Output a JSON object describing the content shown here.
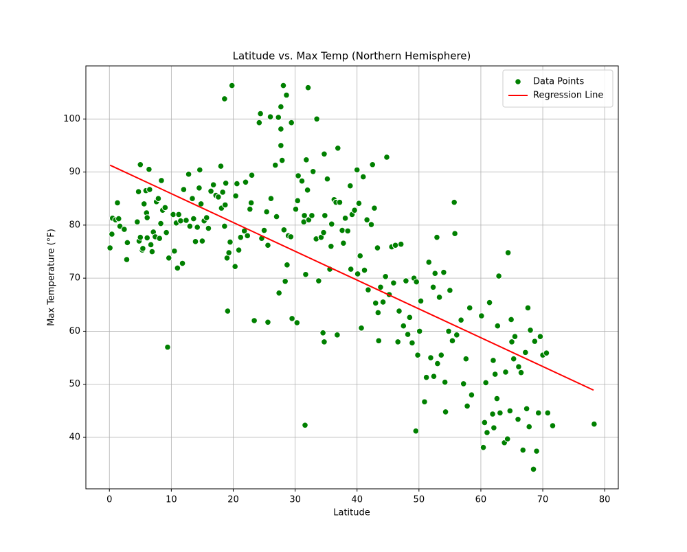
{
  "chart_data": {
    "type": "scatter",
    "title": "Latitude vs. Max Temp (Northern Hemisphere)",
    "xlabel": "Latitude",
    "ylabel": "Max Temperature (°F)",
    "xlim": [
      -3.8,
      82.2
    ],
    "ylim": [
      30.3,
      110
    ],
    "xticks": [
      0,
      10,
      20,
      30,
      40,
      50,
      60,
      70,
      80
    ],
    "yticks": [
      40,
      50,
      60,
      70,
      80,
      90,
      100
    ],
    "grid": true,
    "legend": "upper right",
    "series": [
      {
        "name": "Data Points",
        "kind": "scatter",
        "color": "green",
        "x": [
          0.1,
          0.4,
          0.5,
          1.0,
          1.3,
          1.5,
          1.7,
          2.4,
          2.8,
          2.9,
          4.5,
          4.7,
          4.8,
          5.0,
          5.0,
          5.3,
          5.4,
          5.6,
          5.9,
          6.0,
          6.1,
          6.1,
          6.4,
          6.5,
          6.7,
          6.9,
          7.1,
          7.4,
          7.6,
          7.9,
          8.1,
          8.3,
          8.4,
          8.6,
          9.0,
          9.2,
          9.4,
          9.6,
          10.3,
          10.5,
          10.8,
          11.0,
          11.2,
          11.5,
          11.8,
          12.0,
          12.4,
          12.8,
          13.0,
          13.4,
          13.6,
          13.9,
          14.2,
          14.5,
          14.6,
          14.8,
          15.0,
          15.3,
          15.7,
          16.0,
          16.4,
          16.8,
          17.2,
          17.6,
          18.0,
          18.1,
          18.3,
          18.6,
          18.7,
          18.8,
          18.6,
          19.0,
          19.3,
          19.1,
          19.5,
          19.8,
          20.3,
          20.4,
          20.6,
          20.9,
          21.2,
          21.8,
          22.0,
          22.3,
          22.7,
          23.0,
          22.9,
          23.4,
          24.2,
          24.4,
          24.6,
          25.0,
          25.4,
          25.6,
          25.6,
          26.0,
          26.1,
          26.8,
          27.0,
          27.3,
          27.4,
          27.7,
          27.7,
          27.7,
          27.9,
          28.1,
          28.2,
          28.4,
          28.6,
          28.7,
          28.9,
          29.3,
          29.4,
          29.5,
          30.1,
          30.3,
          30.4,
          30.5,
          31.1,
          31.4,
          31.5,
          31.6,
          31.7,
          31.8,
          32.0,
          32.1,
          32.2,
          32.7,
          32.9,
          33.4,
          33.5,
          33.8,
          34.2,
          34.5,
          34.6,
          34.7,
          34.7,
          34.8,
          35.2,
          35.6,
          35.8,
          35.9,
          36.3,
          36.6,
          36.8,
          36.9,
          37.2,
          37.6,
          37.8,
          38.1,
          38.5,
          38.9,
          39.0,
          39.2,
          39.6,
          40.0,
          40.1,
          40.3,
          40.5,
          40.7,
          41.0,
          41.2,
          41.6,
          41.8,
          42.3,
          42.5,
          42.8,
          43.0,
          43.3,
          43.4,
          43.5,
          43.8,
          44.2,
          44.6,
          44.8,
          45.2,
          45.6,
          45.9,
          46.2,
          46.6,
          46.8,
          47.1,
          47.5,
          47.9,
          48.2,
          48.5,
          48.9,
          49.2,
          49.5,
          49.6,
          49.8,
          50.1,
          50.3,
          50.9,
          51.2,
          51.6,
          51.9,
          52.3,
          52.4,
          52.6,
          52.9,
          53.0,
          53.3,
          53.6,
          54.0,
          54.2,
          54.3,
          54.8,
          55.0,
          55.4,
          55.7,
          55.8,
          56.1,
          56.8,
          57.2,
          57.6,
          57.8,
          58.2,
          58.5,
          60.1,
          60.4,
          60.6,
          60.8,
          61.0,
          61.4,
          61.9,
          62.0,
          62.1,
          62.3,
          62.6,
          62.7,
          62.9,
          63.1,
          63.8,
          64.0,
          64.3,
          64.4,
          64.7,
          64.9,
          65.0,
          65.3,
          65.5,
          66.0,
          66.1,
          66.5,
          66.8,
          67.2,
          67.4,
          67.6,
          67.8,
          68.0,
          68.5,
          68.7,
          69.0,
          69.3,
          69.6,
          70.0,
          70.6,
          70.8,
          71.6,
          78.3
        ],
        "values": [
          75.7,
          78.3,
          81.3,
          81,
          84.2,
          81.2,
          79.8,
          79.2,
          73.5,
          76.7,
          80.6,
          86.3,
          77,
          91.4,
          77.7,
          75.3,
          75.6,
          84,
          86.5,
          82.3,
          81.4,
          77.6,
          90.5,
          86.7,
          76.3,
          75,
          78.7,
          77.8,
          84.4,
          85,
          77.5,
          80.3,
          88.4,
          82.8,
          83.3,
          78.6,
          57,
          73.8,
          82,
          75.1,
          80.4,
          71.9,
          82,
          80.8,
          72.8,
          86.7,
          80.9,
          89.6,
          79.8,
          85,
          81.2,
          76.9,
          79.6,
          87,
          90.4,
          84,
          77,
          80.8,
          81.4,
          79.4,
          86.4,
          87.6,
          85.6,
          85.3,
          91.1,
          83.2,
          86.2,
          79.8,
          83.8,
          87.9,
          103.8,
          73.8,
          74.8,
          63.8,
          76.8,
          106.3,
          72.2,
          85.5,
          87.8,
          75.3,
          77.7,
          78.9,
          88.1,
          78,
          83,
          89.4,
          84.2,
          62,
          99.3,
          101,
          77.5,
          79,
          82.5,
          76.2,
          61.7,
          100.4,
          85,
          91.3,
          81.6,
          100.3,
          67.2,
          102.3,
          98.1,
          95,
          92.2,
          106.3,
          79.1,
          69.4,
          104.5,
          72.5,
          78,
          77.8,
          99.3,
          62.4,
          83,
          61.6,
          84.6,
          89.3,
          88.3,
          80.6,
          81.8,
          42.3,
          70.7,
          92.3,
          86.6,
          105.9,
          81,
          81.8,
          90.1,
          77.4,
          100,
          69.5,
          77.7,
          59.7,
          78.6,
          58,
          93.4,
          81.8,
          88.7,
          71.7,
          76,
          80.2,
          84.8,
          84.3,
          59.3,
          94.5,
          84.3,
          79,
          76.6,
          81.3,
          78.9,
          87.4,
          71.7,
          82,
          82.8,
          90.4,
          70.8,
          84.1,
          74.2,
          60.6,
          89.1,
          71.5,
          81,
          67.8,
          80.1,
          91.4,
          83.2,
          65.3,
          75.7,
          63.5,
          58.2,
          68.3,
          65.5,
          70.3,
          92.8,
          66.9,
          75.9,
          69.1,
          76.2,
          58,
          63.8,
          76.4,
          61,
          69.5,
          59.4,
          62.6,
          57.8,
          70,
          41.2,
          69.3,
          55.5,
          60,
          65.7,
          46.7,
          51.3,
          73,
          55,
          68.3,
          51.5,
          70.9,
          77.7,
          53.9,
          66.4,
          55.5,
          71.1,
          50.4,
          44.8,
          60,
          67.7,
          58.2,
          84.3,
          78.4,
          59.3,
          62.1,
          50.1,
          54.8,
          45.9,
          64.4,
          48,
          62.9,
          38.1,
          42.8,
          50.3,
          40.9,
          65.4,
          44.4,
          54.5,
          41.8,
          51.9,
          47.3,
          61,
          70.4,
          44.6,
          39,
          52.3,
          39.7,
          74.8,
          45,
          62.2,
          58,
          54.8,
          59,
          43.4,
          53.3,
          52.2,
          37.6,
          56,
          45.4,
          64.4,
          42,
          60.2,
          34,
          58.1,
          37.4,
          44.6,
          59,
          55.5,
          55.9,
          44.6,
          42.2,
          42.5
        ]
      },
      {
        "name": "Regression Line",
        "kind": "line",
        "color": "red",
        "x": [
          0.1,
          78.2
        ],
        "values": [
          91.3,
          48.9
        ]
      }
    ]
  }
}
